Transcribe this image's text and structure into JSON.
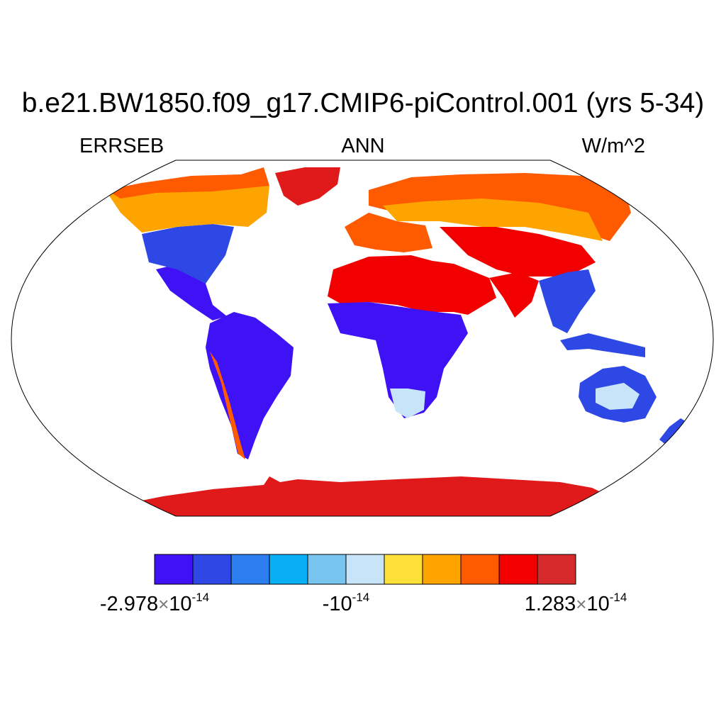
{
  "title": "b.e21.BW1850.f09_g17.CMIP6-piControl.001 (yrs 5-34)",
  "left_string": "ERRSEB",
  "center_string": "ANN",
  "right_string": "W/m^2",
  "colorbar": {
    "colors": [
      "#3f12f6",
      "#2d48e4",
      "#2c7ded",
      "#08aff5",
      "#78c5ef",
      "#c8e4f8",
      "#fde039",
      "#fea400",
      "#fe5a00",
      "#f20000",
      "#d62a2a"
    ],
    "labels": [
      {
        "mantissa": "-2.978",
        "times": "×",
        "base": "10",
        "exponent": "-14"
      },
      {
        "mantissa": "-",
        "times": "",
        "base": "10",
        "exponent": "-14"
      },
      {
        "mantissa": "1.283",
        "times": "×",
        "base": "10",
        "exponent": "-14"
      }
    ]
  },
  "map": {
    "projection": "Robinson",
    "variable": "ERRSEB",
    "season": "ANN",
    "units": "W/m^2",
    "regions": [
      {
        "name": "Antarctica",
        "level": 10
      },
      {
        "name": "Sahara and Arabia",
        "level": 9
      },
      {
        "name": "Sub-Saharan Africa",
        "level": 0
      },
      {
        "name": "Amazon and South America",
        "level": 0
      },
      {
        "name": "Andes",
        "level": 8
      },
      {
        "name": "Southern Africa",
        "level": 5
      },
      {
        "name": "Siberia and Eurasia north",
        "level": 8
      },
      {
        "name": "Central Eurasia",
        "level": 6
      },
      {
        "name": "Central Asia",
        "level": 9
      },
      {
        "name": "Europe",
        "level": 8
      },
      {
        "name": "Greenland",
        "level": 9
      },
      {
        "name": "Canada",
        "level": 8
      },
      {
        "name": "Eastern North America",
        "level": 2
      },
      {
        "name": "Central America",
        "level": 0
      },
      {
        "name": "India",
        "level": 9
      },
      {
        "name": "Southeast Asia",
        "level": 1
      },
      {
        "name": "Australia",
        "level": 1
      },
      {
        "name": "Australian interior",
        "level": 5
      }
    ]
  }
}
